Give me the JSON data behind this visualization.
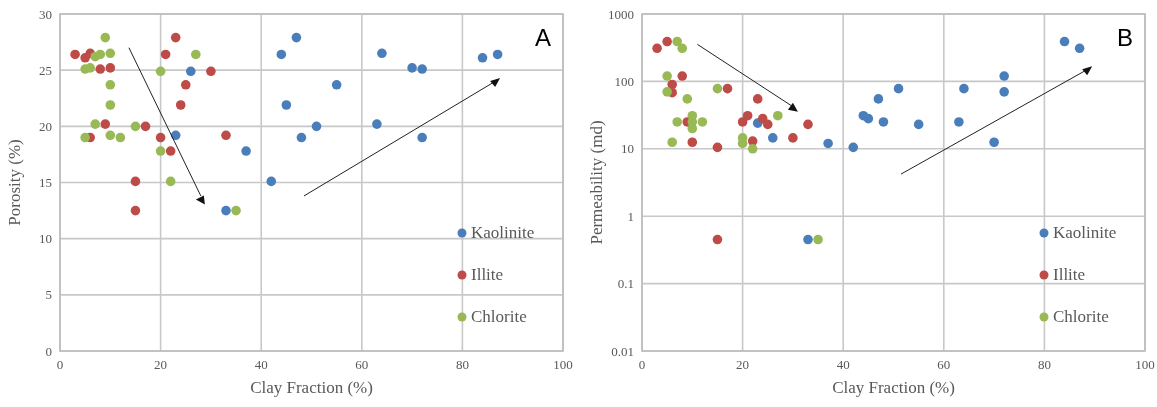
{
  "chart_data": [
    {
      "type": "scatter",
      "xlabel": "Clay Fraction (%)",
      "ylabel": "Porosity (%)",
      "annotations": [
        "A"
      ],
      "xlim": [
        0,
        100
      ],
      "xticks": [
        0,
        20,
        40,
        60,
        80,
        100
      ],
      "ylim": [
        0,
        30
      ],
      "yticks": [
        0,
        5,
        10,
        15,
        20,
        25,
        30
      ],
      "grid": true,
      "legend": "bottom right",
      "marker": "circle",
      "series": [
        {
          "name": "Kaolinite",
          "color": "#4a7ebb",
          "x": [
            23,
            26,
            33,
            37,
            42,
            44,
            45,
            47,
            48,
            51,
            55,
            63,
            64,
            70,
            72,
            72,
            84,
            87
          ],
          "values": [
            19.2,
            24.9,
            12.5,
            17.8,
            15.1,
            26.4,
            21.9,
            27.9,
            19,
            20,
            23.7,
            20.2,
            26.5,
            25.2,
            25.1,
            19,
            26.1,
            26.4
          ]
        },
        {
          "name": "Illite",
          "color": "#be4b48",
          "x": [
            3,
            5,
            6,
            6,
            8,
            9,
            10,
            15,
            15,
            17,
            20,
            21,
            22,
            23,
            24,
            25,
            30,
            33
          ],
          "values": [
            26.4,
            26.1,
            26.5,
            19,
            25.1,
            20.2,
            25.2,
            15.1,
            12.5,
            20,
            19,
            26.4,
            17.8,
            27.9,
            21.9,
            23.7,
            24.9,
            19.2
          ]
        },
        {
          "name": "Chlorite",
          "color": "#98b954",
          "x": [
            5,
            5,
            6,
            7,
            7,
            8,
            9,
            10,
            10,
            10,
            10,
            12,
            15,
            20,
            20,
            22,
            27,
            35
          ],
          "values": [
            25.1,
            19,
            25.2,
            26.2,
            20.2,
            26.4,
            27.9,
            26.5,
            23.7,
            21.9,
            19.2,
            19,
            20,
            24.9,
            17.8,
            15.1,
            26.4,
            12.5
          ]
        }
      ]
    },
    {
      "type": "scatter",
      "xlabel": "Clay Fraction (%)",
      "ylabel": "Permeability (md)",
      "annotations": [
        "B"
      ],
      "log": "y",
      "xlim": [
        0,
        100
      ],
      "xticks": [
        0,
        20,
        40,
        60,
        80,
        100
      ],
      "ylim": [
        0.01,
        1000
      ],
      "yticks": [
        0.01,
        0.1,
        1,
        10,
        100,
        1000
      ],
      "grid": true,
      "legend": "bottom right",
      "marker": "circle",
      "series": [
        {
          "name": "Kaolinite",
          "color": "#4a7ebb",
          "x": [
            23,
            26,
            33,
            37,
            42,
            44,
            45,
            47,
            48,
            51,
            55,
            63,
            64,
            70,
            72,
            72,
            84,
            87
          ],
          "values": [
            24,
            14.5,
            0.45,
            12,
            10.5,
            31,
            28,
            55,
            25,
            78,
            23,
            25,
            78,
            12.5,
            120,
            70,
            390,
            310
          ]
        },
        {
          "name": "Illite",
          "color": "#be4b48",
          "x": [
            3,
            5,
            6,
            6,
            8,
            9,
            10,
            15,
            15,
            17,
            20,
            21,
            22,
            23,
            24,
            25,
            30,
            33
          ],
          "values": [
            310,
            390,
            90,
            68,
            120,
            25,
            12.5,
            0.45,
            10.5,
            78,
            25,
            31,
            13,
            55,
            28,
            23,
            14.5,
            23
          ]
        },
        {
          "name": "Chlorite",
          "color": "#98b954",
          "x": [
            5,
            5,
            6,
            7,
            7,
            8,
            9,
            10,
            10,
            10,
            12,
            15,
            20,
            20,
            22,
            27,
            35
          ],
          "values": [
            120,
            70,
            12.5,
            390,
            25,
            310,
            55,
            25,
            31,
            20,
            25,
            78,
            14.5,
            12,
            10,
            31,
            0.45
          ]
        }
      ]
    }
  ]
}
